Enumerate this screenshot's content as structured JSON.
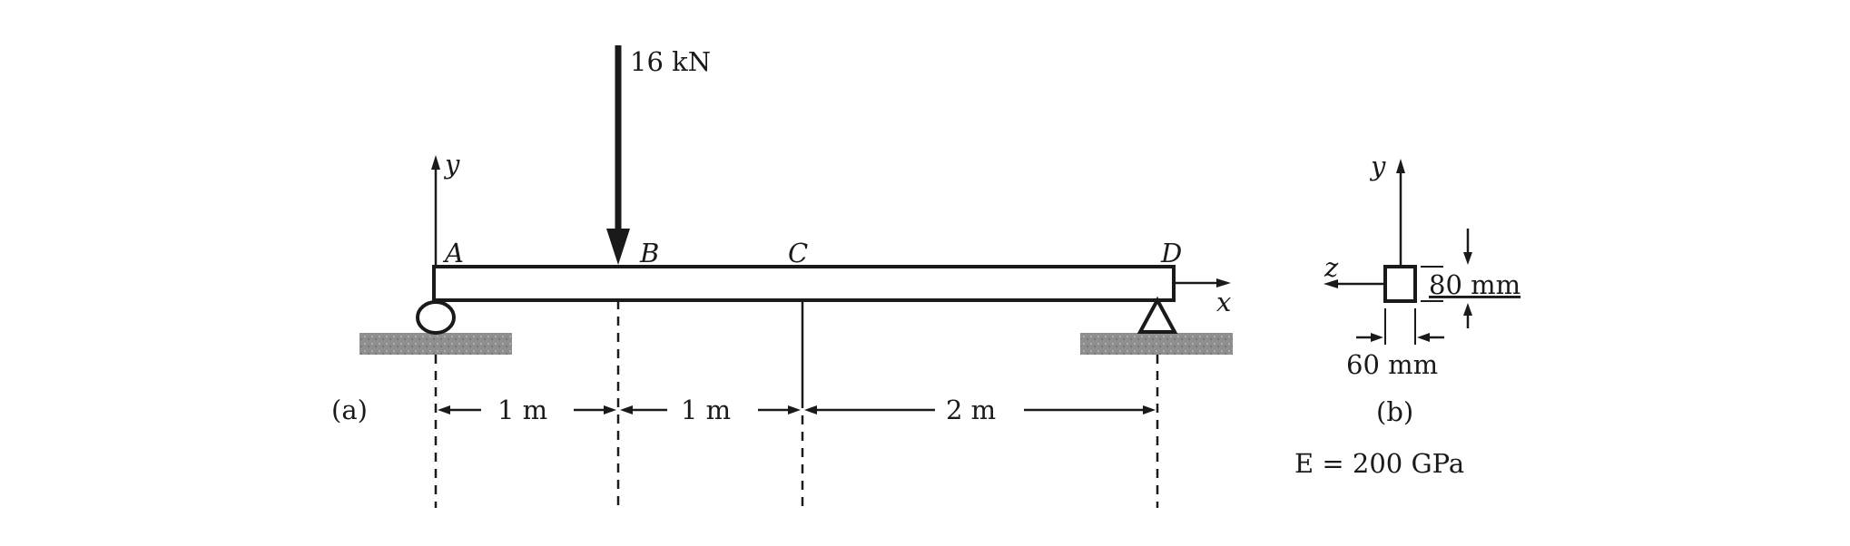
{
  "figure_a": {
    "panel_label": "(a)",
    "load_label": "16 kN",
    "axis_y": "y",
    "axis_x": "x",
    "points": [
      "A",
      "B",
      "C",
      "D"
    ],
    "spans": [
      "1 m",
      "1 m",
      "2 m"
    ]
  },
  "figure_b": {
    "panel_label": "(b)",
    "axis_y": "y",
    "axis_z": "z",
    "height_label": "80 mm",
    "width_label": "60 mm"
  },
  "modulus_label": "E = 200 GPa"
}
